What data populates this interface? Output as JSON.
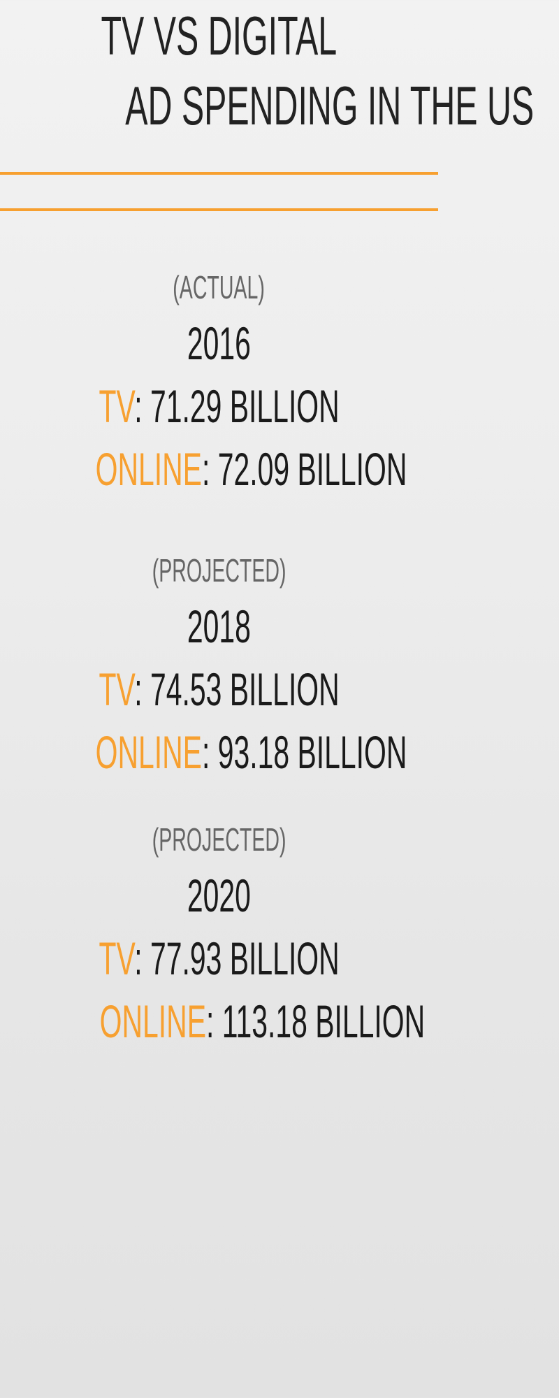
{
  "title": {
    "line1": "TV VS  DIGITAL",
    "line2": "AD SPENDING IN THE US"
  },
  "colors": {
    "accent": "#f7a030",
    "text": "#1a1a1a",
    "label": "#666666"
  },
  "sections": [
    {
      "label": "(ACTUAL)",
      "year": "2016",
      "tv_key": "TV",
      "tv_value": ": 71.29 BILLION",
      "online_key": "ONLINE",
      "online_value": ": 72.09 BILLION"
    },
    {
      "label": "(PROJECTED)",
      "year": "2018",
      "tv_key": "TV",
      "tv_value": ": 74.53 BILLION",
      "online_key": "ONLINE",
      "online_value": ": 93.18 BILLION"
    },
    {
      "label": "(PROJECTED)",
      "year": "2020",
      "tv_key": "TV",
      "tv_value": ": 77.93 BILLION",
      "online_key": "ONLINE",
      "online_value": ": 113.18 BILLION"
    }
  ]
}
